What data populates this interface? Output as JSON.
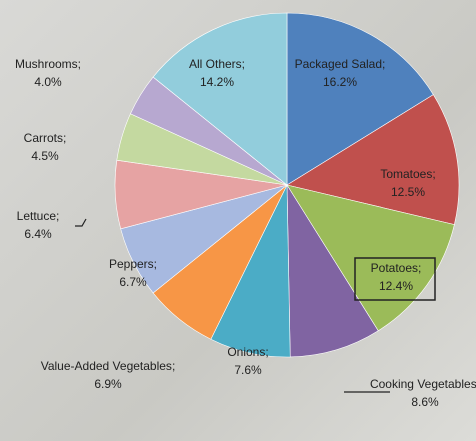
{
  "chart_data": {
    "type": "pie",
    "categories": [
      "Packaged Salad",
      "Tomatoes",
      "Potatoes",
      "Cooking Vegetables",
      "Onions",
      "Value-Added Vegetables",
      "Peppers",
      "Lettuce",
      "Carrots",
      "Mushrooms",
      "All Others"
    ],
    "values": [
      16.2,
      12.5,
      12.4,
      8.6,
      7.6,
      6.9,
      6.7,
      6.4,
      4.5,
      4.0,
      14.2
    ],
    "value_labels": [
      "16.2%",
      "12.5%",
      "12.4%",
      "8.6%",
      "7.6%",
      "6.9%",
      "6.7%",
      "6.4%",
      "4.5%",
      "4.0%",
      "14.2%"
    ],
    "separator": ";",
    "colors": [
      "#4f81bd",
      "#c0504d",
      "#9bbb59",
      "#8064a2",
      "#4bacc6",
      "#f79646",
      "#a7b9e0",
      "#e6a3a3",
      "#c4d9a0",
      "#b7a8d0",
      "#92cddc"
    ]
  }
}
